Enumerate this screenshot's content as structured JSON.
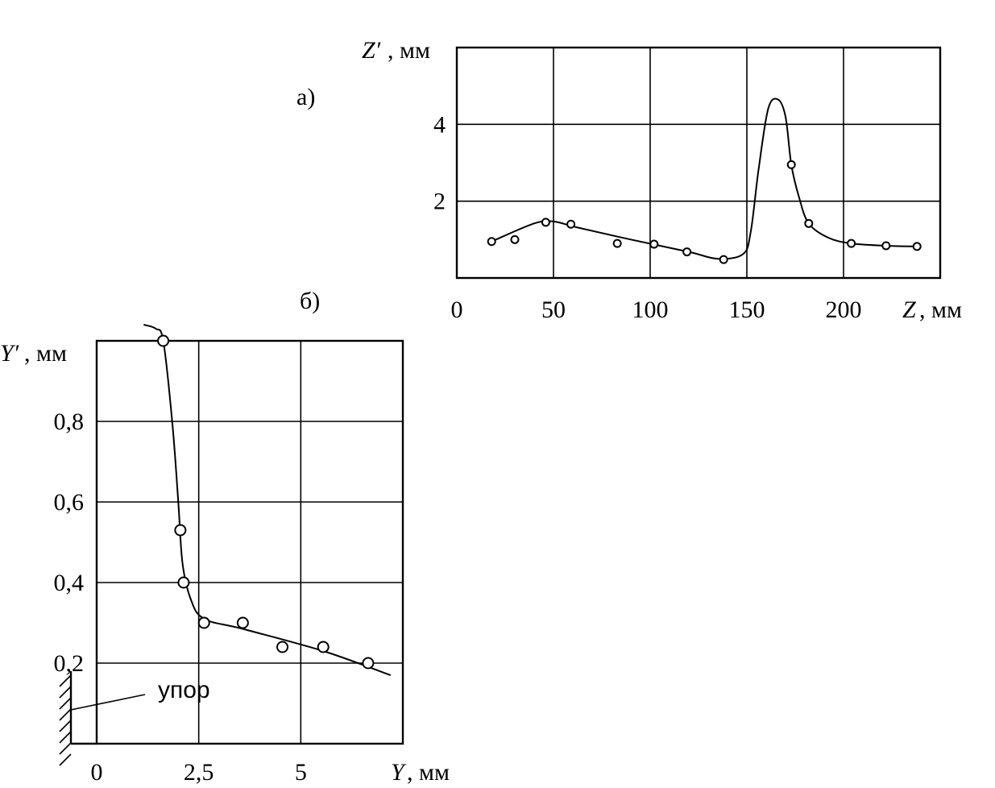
{
  "chart_data": [
    {
      "type": "line",
      "panel_label": "а)",
      "xlabel": {
        "var": "Z",
        "unit": ", мм"
      },
      "ylabel": {
        "var": "Z′",
        "unit": ", мм"
      },
      "xlim": [
        0,
        250
      ],
      "ylim": [
        0,
        6
      ],
      "x_ticks": [
        "0",
        "50",
        "100",
        "150",
        "200"
      ],
      "y_ticks": [
        "2",
        "4"
      ],
      "grid": true,
      "points": [
        {
          "x": 18,
          "y": 0.95
        },
        {
          "x": 30,
          "y": 1.0
        },
        {
          "x": 46,
          "y": 1.45
        },
        {
          "x": 59,
          "y": 1.4
        },
        {
          "x": 83,
          "y": 0.9
        },
        {
          "x": 102,
          "y": 0.88
        },
        {
          "x": 119,
          "y": 0.68
        },
        {
          "x": 138,
          "y": 0.48
        },
        {
          "x": 173,
          "y": 2.95
        },
        {
          "x": 182,
          "y": 1.42
        },
        {
          "x": 204,
          "y": 0.9
        },
        {
          "x": 222,
          "y": 0.84
        },
        {
          "x": 238,
          "y": 0.82
        }
      ],
      "curve": [
        {
          "x": 18,
          "y": 0.95
        },
        {
          "x": 40,
          "y": 1.42
        },
        {
          "x": 50,
          "y": 1.47
        },
        {
          "x": 62,
          "y": 1.32
        },
        {
          "x": 90,
          "y": 1.0
        },
        {
          "x": 120,
          "y": 0.68
        },
        {
          "x": 135,
          "y": 0.5
        },
        {
          "x": 148,
          "y": 0.62
        },
        {
          "x": 152,
          "y": 1.2
        },
        {
          "x": 156,
          "y": 2.8
        },
        {
          "x": 161,
          "y": 4.4
        },
        {
          "x": 166,
          "y": 4.65
        },
        {
          "x": 170,
          "y": 4.2
        },
        {
          "x": 173,
          "y": 2.95
        },
        {
          "x": 177,
          "y": 2.1
        },
        {
          "x": 182,
          "y": 1.42
        },
        {
          "x": 192,
          "y": 1.05
        },
        {
          "x": 204,
          "y": 0.9
        },
        {
          "x": 222,
          "y": 0.84
        },
        {
          "x": 238,
          "y": 0.82
        }
      ]
    },
    {
      "type": "line",
      "panel_label": "б)",
      "xlabel": {
        "var": "Y",
        "unit": ", мм"
      },
      "ylabel": {
        "var": "Y′",
        "unit": ", мм"
      },
      "xlim": [
        0,
        7.5
      ],
      "ylim": [
        0,
        1.0
      ],
      "x_ticks": [
        "0",
        "2,5",
        "5"
      ],
      "y_ticks": [
        "0,2",
        "0,4",
        "0,6",
        "0,8"
      ],
      "grid": true,
      "annotation": "упор",
      "points": [
        {
          "x": 1.63,
          "y": 1.0
        },
        {
          "x": 2.05,
          "y": 0.53
        },
        {
          "x": 2.13,
          "y": 0.4
        },
        {
          "x": 2.63,
          "y": 0.3
        },
        {
          "x": 3.58,
          "y": 0.3
        },
        {
          "x": 4.55,
          "y": 0.24
        },
        {
          "x": 5.55,
          "y": 0.24
        },
        {
          "x": 6.65,
          "y": 0.2
        }
      ],
      "curve": [
        {
          "x": 1.15,
          "y": 1.04
        },
        {
          "x": 1.45,
          "y": 1.03
        },
        {
          "x": 1.63,
          "y": 1.0
        },
        {
          "x": 1.85,
          "y": 0.8
        },
        {
          "x": 2.0,
          "y": 0.6
        },
        {
          "x": 2.1,
          "y": 0.45
        },
        {
          "x": 2.3,
          "y": 0.36
        },
        {
          "x": 2.63,
          "y": 0.31
        },
        {
          "x": 3.58,
          "y": 0.285
        },
        {
          "x": 5.55,
          "y": 0.23
        },
        {
          "x": 7.2,
          "y": 0.17
        }
      ]
    }
  ]
}
